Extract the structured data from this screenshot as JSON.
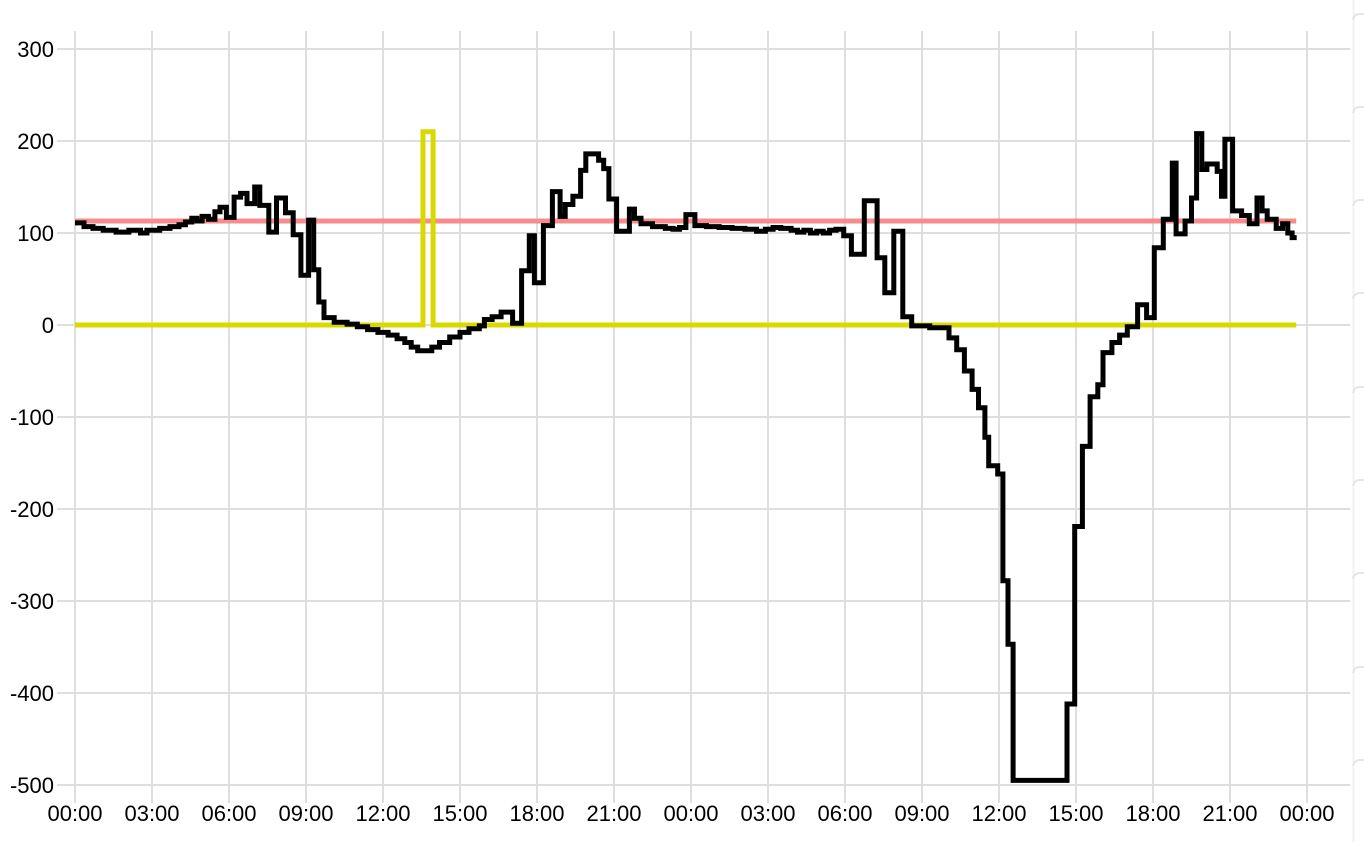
{
  "chart_data": {
    "type": "line",
    "title": "",
    "xlabel": "",
    "ylabel": "",
    "grid": true,
    "legend": "none",
    "x_axis": {
      "kind": "time-of-day, two consecutive days (48 hours)",
      "tick_hours": [
        0,
        3,
        6,
        9,
        12,
        15,
        18,
        21,
        24,
        27,
        30,
        33,
        36,
        39,
        42,
        45,
        48
      ],
      "tick_labels": [
        "00:00",
        "03:00",
        "06:00",
        "09:00",
        "12:00",
        "15:00",
        "18:00",
        "21:00",
        "00:00",
        "03:00",
        "06:00",
        "09:00",
        "12:00",
        "15:00",
        "18:00",
        "21:00",
        "00:00"
      ],
      "range_hours": [
        0,
        49.7
      ]
    },
    "y_axis": {
      "ticks": [
        {
          "value": 300,
          "label": "300"
        },
        {
          "value": 200,
          "label": "200"
        },
        {
          "value": 100,
          "label": "100"
        },
        {
          "value": 0,
          "label": "0"
        },
        {
          "value": -100,
          "label": "-100"
        },
        {
          "value": -200,
          "label": "-200"
        },
        {
          "value": -300,
          "label": "-300"
        },
        {
          "value": -400,
          "label": "-400"
        },
        {
          "value": -500,
          "label": "-500"
        }
      ],
      "range": [
        -520,
        320
      ]
    },
    "series": [
      {
        "name": "threshold-line-red",
        "color": "#f68c8c",
        "width": 5,
        "mode": "line",
        "points": [
          [
            0,
            113
          ],
          [
            47.58,
            113
          ]
        ]
      },
      {
        "name": "baseline-line-yellow",
        "color": "#d9d900",
        "width": 5,
        "mode": "step",
        "points": [
          [
            0,
            0
          ],
          [
            13.56,
            210
          ],
          [
            13.95,
            0
          ],
          [
            47.58,
            0
          ]
        ]
      },
      {
        "name": "main-series-black",
        "color": "#000000",
        "width": 5,
        "mode": "step",
        "points": [
          [
            0,
            111
          ],
          [
            0.35,
            107
          ],
          [
            0.7,
            105
          ],
          [
            1.1,
            103
          ],
          [
            1.6,
            101
          ],
          [
            2.1,
            103
          ],
          [
            2.55,
            100
          ],
          [
            2.8,
            103
          ],
          [
            3.3,
            105
          ],
          [
            3.7,
            107
          ],
          [
            4.05,
            109
          ],
          [
            4.3,
            112
          ],
          [
            4.55,
            116
          ],
          [
            4.75,
            113
          ],
          [
            4.95,
            118
          ],
          [
            5.2,
            115
          ],
          [
            5.45,
            123
          ],
          [
            5.65,
            128
          ],
          [
            5.9,
            117
          ],
          [
            6.2,
            139
          ],
          [
            6.45,
            143
          ],
          [
            6.7,
            132
          ],
          [
            7.0,
            150
          ],
          [
            7.2,
            130
          ],
          [
            7.55,
            101
          ],
          [
            7.85,
            138
          ],
          [
            8.2,
            122
          ],
          [
            8.5,
            98
          ],
          [
            8.8,
            54
          ],
          [
            9.1,
            114
          ],
          [
            9.3,
            60
          ],
          [
            9.5,
            25
          ],
          [
            9.7,
            8
          ],
          [
            10.1,
            3
          ],
          [
            10.6,
            1
          ],
          [
            11.0,
            -2
          ],
          [
            11.4,
            -5
          ],
          [
            11.8,
            -8
          ],
          [
            12.2,
            -11
          ],
          [
            12.55,
            -15
          ],
          [
            12.85,
            -19
          ],
          [
            13.1,
            -24
          ],
          [
            13.35,
            -28
          ],
          [
            13.9,
            -24
          ],
          [
            14.2,
            -19
          ],
          [
            14.6,
            -13
          ],
          [
            15.0,
            -8
          ],
          [
            15.35,
            -4
          ],
          [
            15.75,
            -1
          ],
          [
            15.95,
            6
          ],
          [
            16.25,
            9
          ],
          [
            16.6,
            14
          ],
          [
            17.05,
            2
          ],
          [
            17.4,
            59
          ],
          [
            17.7,
            97
          ],
          [
            17.9,
            46
          ],
          [
            18.25,
            108
          ],
          [
            18.6,
            145
          ],
          [
            18.9,
            118
          ],
          [
            19.1,
            131
          ],
          [
            19.4,
            140
          ],
          [
            19.7,
            168
          ],
          [
            19.9,
            186
          ],
          [
            20.4,
            179
          ],
          [
            20.6,
            170
          ],
          [
            20.8,
            137
          ],
          [
            21.1,
            102
          ],
          [
            21.6,
            126
          ],
          [
            21.8,
            116
          ],
          [
            22.05,
            110
          ],
          [
            22.5,
            107
          ],
          [
            23.0,
            105
          ],
          [
            23.3,
            104
          ],
          [
            23.55,
            106
          ],
          [
            23.8,
            120
          ],
          [
            24.15,
            108
          ],
          [
            24.6,
            107
          ],
          [
            25.1,
            106
          ],
          [
            25.6,
            105
          ],
          [
            26.1,
            104
          ],
          [
            26.55,
            102
          ],
          [
            26.9,
            104
          ],
          [
            27.2,
            106
          ],
          [
            27.5,
            105
          ],
          [
            27.9,
            103
          ],
          [
            28.15,
            101
          ],
          [
            28.4,
            103
          ],
          [
            28.65,
            100
          ],
          [
            28.9,
            102
          ],
          [
            29.15,
            100
          ],
          [
            29.4,
            103
          ],
          [
            29.65,
            104
          ],
          [
            29.95,
            97
          ],
          [
            30.25,
            77
          ],
          [
            30.75,
            135
          ],
          [
            31.25,
            73
          ],
          [
            31.55,
            35
          ],
          [
            31.9,
            102
          ],
          [
            32.25,
            9
          ],
          [
            32.6,
            -1
          ],
          [
            33.3,
            -3
          ],
          [
            34.05,
            -14
          ],
          [
            34.35,
            -27
          ],
          [
            34.65,
            -50
          ],
          [
            34.95,
            -70
          ],
          [
            35.2,
            -90
          ],
          [
            35.45,
            -122
          ],
          [
            35.6,
            -153
          ],
          [
            35.95,
            -162
          ],
          [
            36.15,
            -278
          ],
          [
            36.35,
            -347
          ],
          [
            36.55,
            -495
          ],
          [
            38.65,
            -412
          ],
          [
            38.95,
            -219
          ],
          [
            39.25,
            -132
          ],
          [
            39.55,
            -78
          ],
          [
            39.85,
            -65
          ],
          [
            40.05,
            -30
          ],
          [
            40.4,
            -19
          ],
          [
            40.7,
            -11
          ],
          [
            41.0,
            -2
          ],
          [
            41.4,
            22
          ],
          [
            41.75,
            8
          ],
          [
            42.05,
            84
          ],
          [
            42.4,
            115
          ],
          [
            42.75,
            176
          ],
          [
            42.9,
            99
          ],
          [
            43.25,
            113
          ],
          [
            43.5,
            138
          ],
          [
            43.7,
            208
          ],
          [
            43.9,
            169
          ],
          [
            44.1,
            175
          ],
          [
            44.5,
            167
          ],
          [
            44.67,
            140
          ],
          [
            44.8,
            202
          ],
          [
            45.1,
            124
          ],
          [
            45.45,
            119
          ],
          [
            45.75,
            110
          ],
          [
            46.05,
            138
          ],
          [
            46.25,
            124
          ],
          [
            46.45,
            115
          ],
          [
            46.8,
            105
          ],
          [
            47.05,
            110
          ],
          [
            47.25,
            100
          ],
          [
            47.42,
            95
          ],
          [
            47.6,
            95
          ]
        ]
      }
    ],
    "style": {
      "grid_color": "#dedede",
      "label_color": "#000000",
      "background": "#ffffff",
      "font_size_px": 22
    },
    "right_edge_marks": {
      "note": "faint clipped panel edge on far right",
      "line_color": "#f2f2f2",
      "mark_color": "#e5e5e5",
      "mark_ys": [
        14,
        107,
        200,
        293,
        387,
        480,
        573,
        667,
        760
      ]
    }
  }
}
